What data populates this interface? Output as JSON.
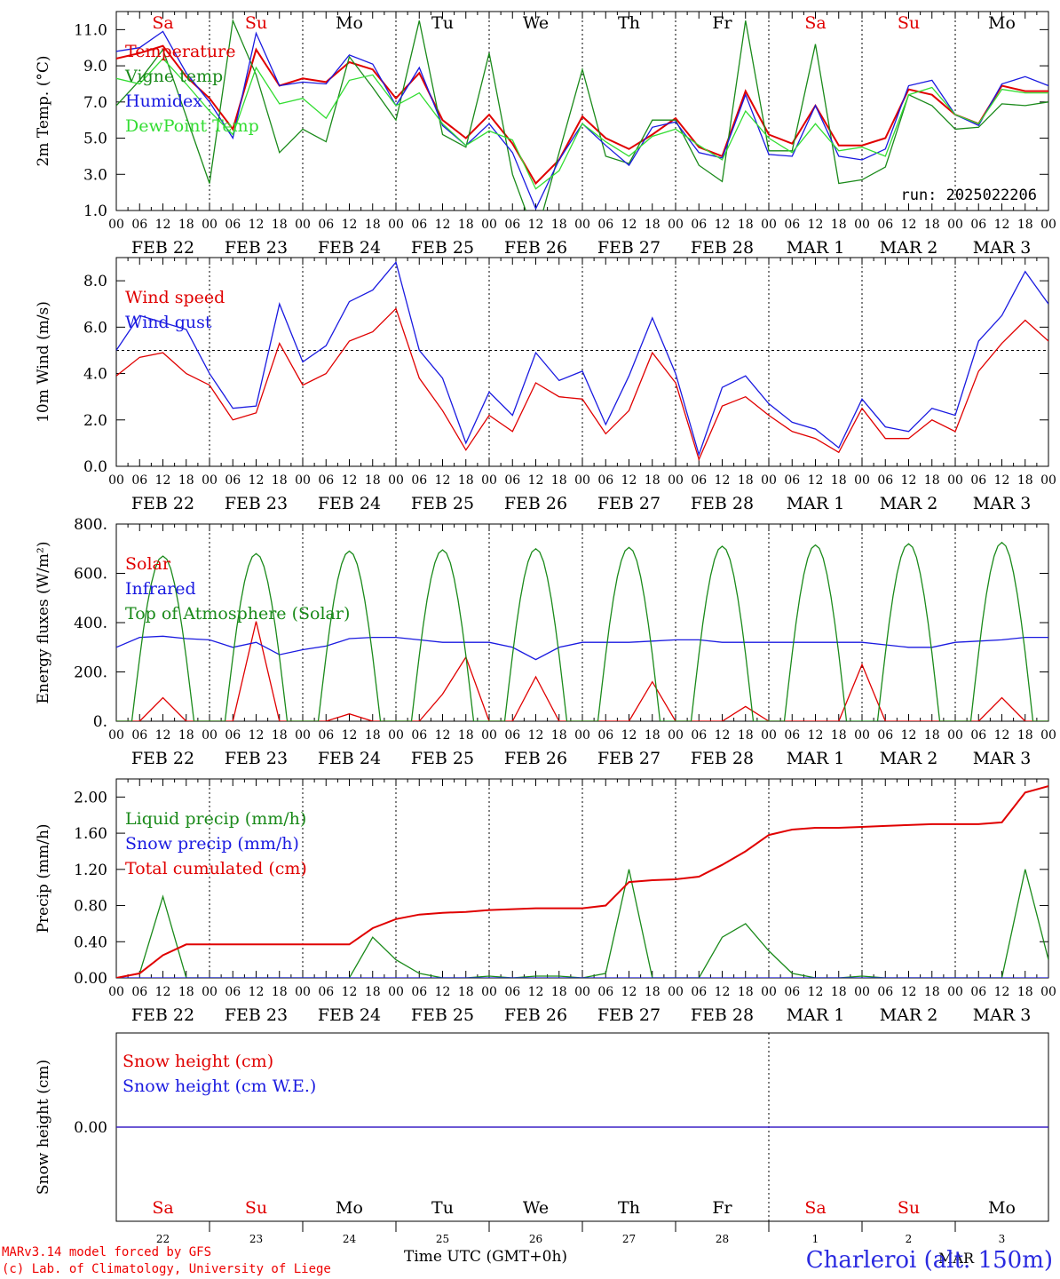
{
  "meta": {
    "run": "run: 2025022206",
    "credit_1": "MARv3.14 model forced by GFS",
    "credit_2": "(c) Lab. of Climatology, University of Liege",
    "station": "Charleroi (alt. 150m)",
    "xtitle": "Time UTC (GMT+0h)",
    "month_label": "MAR",
    "colors": {
      "red": "#e00000",
      "green": "#1a8a1a",
      "blue": "#1a1ae0",
      "lightgreen": "#33dd33",
      "axis": "#000000"
    }
  },
  "chart_data": [
    {
      "type": "line",
      "id": "temp",
      "ylabel": "2m Temp. (°C)",
      "ylim": [
        1.0,
        12.0
      ],
      "yticks": [
        "1.0",
        "3.0",
        "5.0",
        "7.0",
        "9.0",
        "11.0"
      ],
      "ytick_values": [
        1,
        3,
        5,
        7,
        9,
        11
      ],
      "x_hours": [
        0,
        6,
        12,
        18,
        24,
        30,
        36,
        42,
        48,
        54,
        60,
        66,
        72,
        78,
        84,
        90,
        96,
        102,
        108,
        114,
        120,
        126,
        132,
        138,
        144,
        150,
        156,
        162,
        168,
        174,
        180,
        186,
        192,
        198,
        204,
        210,
        216,
        222,
        228,
        234,
        240
      ],
      "series": [
        {
          "name": "Temperature",
          "color": "red",
          "values": [
            9.4,
            9.7,
            10.1,
            8.4,
            7.2,
            5.5,
            9.9,
            7.9,
            8.3,
            8.1,
            9.2,
            8.8,
            7.2,
            8.6,
            6.0,
            5.0,
            6.3,
            4.7,
            2.5,
            3.8,
            6.2,
            5.0,
            4.4,
            5.2,
            6.1,
            4.5,
            4.0,
            7.6,
            5.2,
            4.7,
            6.8,
            4.6,
            4.6,
            5.0,
            7.7,
            7.4,
            6.3,
            5.8,
            7.9,
            7.6,
            7.6
          ]
        },
        {
          "name": "Vigne temp",
          "color": "green",
          "values": [
            6.8,
            8.2,
            9.9,
            6.2,
            2.5,
            11.5,
            8.5,
            4.2,
            5.5,
            4.8,
            9.5,
            7.8,
            6.0,
            11.5,
            5.2,
            4.5,
            9.7,
            3.0,
            -0.5,
            4.2,
            8.8,
            4.0,
            3.6,
            6.0,
            6.0,
            3.5,
            2.6,
            11.5,
            4.3,
            4.3,
            10.2,
            2.5,
            2.7,
            3.4,
            7.4,
            6.8,
            5.5,
            5.6,
            6.9,
            6.8,
            7.0
          ]
        },
        {
          "name": "Humidex",
          "color": "blue",
          "values": [
            9.8,
            10.0,
            10.9,
            8.6,
            7.0,
            5.0,
            10.8,
            7.9,
            8.1,
            8.0,
            9.6,
            9.1,
            6.8,
            8.9,
            5.7,
            4.6,
            5.8,
            4.2,
            1.1,
            3.8,
            5.8,
            4.6,
            3.5,
            5.6,
            5.9,
            4.2,
            3.9,
            7.4,
            4.1,
            4.0,
            6.8,
            4.0,
            3.8,
            4.4,
            7.9,
            8.2,
            6.3,
            5.7,
            8.0,
            8.4,
            7.9
          ]
        },
        {
          "name": "DewPoint Temp",
          "color": "lightgreen",
          "values": [
            8.3,
            8.0,
            9.4,
            8.0,
            6.5,
            5.2,
            8.9,
            6.9,
            7.2,
            6.1,
            8.2,
            8.5,
            6.8,
            7.5,
            5.8,
            4.6,
            5.4,
            4.9,
            2.2,
            3.2,
            5.8,
            4.8,
            4.0,
            5.1,
            5.5,
            4.6,
            3.8,
            6.5,
            5.0,
            4.2,
            5.8,
            4.3,
            4.5,
            4.0,
            7.4,
            7.8,
            6.3,
            5.8,
            7.7,
            7.5,
            7.5
          ]
        }
      ]
    },
    {
      "type": "line",
      "id": "wind",
      "ylabel": "10m Wind (m/s)",
      "ylim": [
        0,
        9.0
      ],
      "yticks": [
        "0.0",
        "2.0",
        "4.0",
        "6.0",
        "8.0"
      ],
      "ytick_values": [
        0,
        2,
        4,
        6,
        8
      ],
      "ref_line": 5.0,
      "x_hours": [
        0,
        6,
        12,
        18,
        24,
        30,
        36,
        42,
        48,
        54,
        60,
        66,
        72,
        78,
        84,
        90,
        96,
        102,
        108,
        114,
        120,
        126,
        132,
        138,
        144,
        150,
        156,
        162,
        168,
        174,
        180,
        186,
        192,
        198,
        204,
        210,
        216,
        222,
        228,
        234,
        240
      ],
      "series": [
        {
          "name": "Wind speed",
          "color": "red",
          "values": [
            3.9,
            4.7,
            4.9,
            4.0,
            3.5,
            2.0,
            2.3,
            5.3,
            3.5,
            4.0,
            5.4,
            5.8,
            6.8,
            3.8,
            2.4,
            0.7,
            2.2,
            1.5,
            3.6,
            3.0,
            2.9,
            1.4,
            2.4,
            4.9,
            3.6,
            0.3,
            2.6,
            3.0,
            2.2,
            1.5,
            1.2,
            0.6,
            2.5,
            1.2,
            1.2,
            2.0,
            1.5,
            4.1,
            5.3,
            6.3,
            5.4
          ]
        },
        {
          "name": "Wind gust",
          "color": "blue",
          "values": [
            5.0,
            6.5,
            6.2,
            5.9,
            4.0,
            2.5,
            2.6,
            7.0,
            4.5,
            5.2,
            7.1,
            7.6,
            8.8,
            5.0,
            3.8,
            1.0,
            3.2,
            2.2,
            4.9,
            3.7,
            4.1,
            1.8,
            3.9,
            6.4,
            4.0,
            0.5,
            3.4,
            3.9,
            2.7,
            1.9,
            1.6,
            0.8,
            2.9,
            1.7,
            1.5,
            2.5,
            2.2,
            5.4,
            6.5,
            8.4,
            7.0
          ]
        }
      ]
    },
    {
      "type": "line",
      "id": "energy",
      "ylabel": "Energy fluxes (W/m²)",
      "ylim": [
        0,
        800
      ],
      "yticks": [
        "0.",
        "200.",
        "400.",
        "600.",
        "800."
      ],
      "ytick_values": [
        0,
        200,
        400,
        600,
        800
      ],
      "x_hours": [
        0,
        6,
        12,
        18,
        24,
        30,
        36,
        42,
        48,
        54,
        60,
        66,
        72,
        78,
        84,
        90,
        96,
        102,
        108,
        114,
        120,
        126,
        132,
        138,
        144,
        150,
        156,
        162,
        168,
        174,
        180,
        186,
        192,
        198,
        204,
        210,
        216,
        222,
        228,
        234,
        240
      ],
      "series": [
        {
          "name": "Solar",
          "color": "red",
          "values": [
            0,
            0,
            95,
            0,
            0,
            0,
            405,
            0,
            0,
            0,
            30,
            0,
            0,
            0,
            110,
            260,
            0,
            0,
            180,
            0,
            0,
            0,
            0,
            160,
            0,
            0,
            0,
            60,
            0,
            0,
            0,
            0,
            230,
            0,
            0,
            0,
            0,
            0,
            95,
            0,
            0
          ]
        },
        {
          "name": "Infrared",
          "color": "blue",
          "values": [
            300,
            340,
            345,
            335,
            330,
            300,
            320,
            270,
            290,
            305,
            335,
            340,
            340,
            330,
            320,
            320,
            320,
            300,
            250,
            300,
            320,
            320,
            320,
            325,
            330,
            330,
            320,
            320,
            320,
            320,
            320,
            320,
            320,
            310,
            300,
            300,
            320,
            325,
            330,
            340,
            340
          ]
        },
        {
          "name": "Top of Atmosphere (Solar)",
          "color": "green",
          "peaks": [
            670,
            680,
            690,
            695,
            700,
            705,
            710,
            715,
            720,
            725
          ],
          "peak_hours": [
            12,
            36,
            60,
            84,
            108,
            132,
            156,
            180,
            204,
            228
          ]
        }
      ]
    },
    {
      "type": "line",
      "id": "precip",
      "ylabel": "Precip (mm/h)",
      "ylim": [
        0,
        2.2
      ],
      "yticks": [
        "0.00",
        "0.40",
        "0.80",
        "1.20",
        "1.60",
        "2.00"
      ],
      "ytick_values": [
        0,
        0.4,
        0.8,
        1.2,
        1.6,
        2.0
      ],
      "x_hours": [
        0,
        6,
        12,
        18,
        24,
        30,
        36,
        42,
        48,
        54,
        60,
        66,
        72,
        78,
        84,
        90,
        96,
        102,
        108,
        114,
        120,
        126,
        132,
        138,
        144,
        150,
        156,
        162,
        168,
        174,
        180,
        186,
        192,
        198,
        204,
        210,
        216,
        222,
        228,
        234,
        240
      ],
      "series": [
        {
          "name": "Liquid precip (mm/h)",
          "color": "green",
          "values": [
            0,
            0.05,
            0.9,
            0,
            0,
            0,
            0,
            0,
            0,
            0,
            0,
            0.45,
            0.2,
            0.05,
            0,
            0,
            0.02,
            0,
            0.02,
            0.02,
            0,
            0.05,
            1.2,
            0,
            0,
            0,
            0.45,
            0.6,
            0.3,
            0.05,
            0,
            0,
            0.02,
            0,
            0,
            0,
            0,
            0,
            0,
            1.2,
            0.2
          ]
        },
        {
          "name": "Snow precip (mm/h)",
          "color": "blue",
          "values": [
            0,
            0,
            0,
            0,
            0,
            0,
            0,
            0,
            0,
            0,
            0,
            0,
            0,
            0,
            0,
            0,
            0,
            0,
            0,
            0,
            0,
            0,
            0,
            0,
            0,
            0,
            0,
            0,
            0,
            0,
            0,
            0,
            0,
            0,
            0,
            0,
            0,
            0,
            0,
            0,
            0
          ]
        },
        {
          "name": "Total cumulated (cm)",
          "color": "red",
          "values": [
            0,
            0.05,
            0.25,
            0.37,
            0.37,
            0.37,
            0.37,
            0.37,
            0.37,
            0.37,
            0.37,
            0.55,
            0.65,
            0.7,
            0.72,
            0.73,
            0.75,
            0.76,
            0.77,
            0.77,
            0.77,
            0.8,
            1.06,
            1.08,
            1.09,
            1.12,
            1.25,
            1.4,
            1.58,
            1.64,
            1.66,
            1.66,
            1.67,
            1.68,
            1.69,
            1.7,
            1.7,
            1.7,
            1.72,
            2.05,
            2.12
          ]
        }
      ]
    },
    {
      "type": "line",
      "id": "snow",
      "ylabel": "Snow height (cm)",
      "ylim": [
        -1,
        1
      ],
      "yticks": [
        "0.00"
      ],
      "ytick_values": [
        0
      ],
      "series": [
        {
          "name": "Snow height (cm)",
          "color": "red",
          "values": [
            0,
            0
          ]
        },
        {
          "name": "Snow height (cm W.E.)",
          "color": "blue",
          "values": [
            0,
            0
          ]
        }
      ]
    }
  ],
  "days_top": [
    {
      "label": "Sa",
      "weekend": true
    },
    {
      "label": "Su",
      "weekend": true
    },
    {
      "label": "Mo",
      "weekend": false
    },
    {
      "label": "Tu",
      "weekend": false
    },
    {
      "label": "We",
      "weekend": false
    },
    {
      "label": "Th",
      "weekend": false
    },
    {
      "label": "Fr",
      "weekend": false
    },
    {
      "label": "Sa",
      "weekend": true
    },
    {
      "label": "Su",
      "weekend": true
    },
    {
      "label": "Mo",
      "weekend": false
    }
  ],
  "dates": [
    "FEB 22",
    "FEB 23",
    "FEB 24",
    "FEB 25",
    "FEB 26",
    "FEB 27",
    "FEB 28",
    "MAR  1",
    "MAR  2",
    "MAR  3"
  ],
  "day_numbers": [
    "22",
    "23",
    "24",
    "25",
    "26",
    "27",
    "28",
    "1",
    "2",
    "3"
  ],
  "hour_ticks": [
    "00",
    "06",
    "12",
    "18"
  ],
  "hour_end": "00"
}
